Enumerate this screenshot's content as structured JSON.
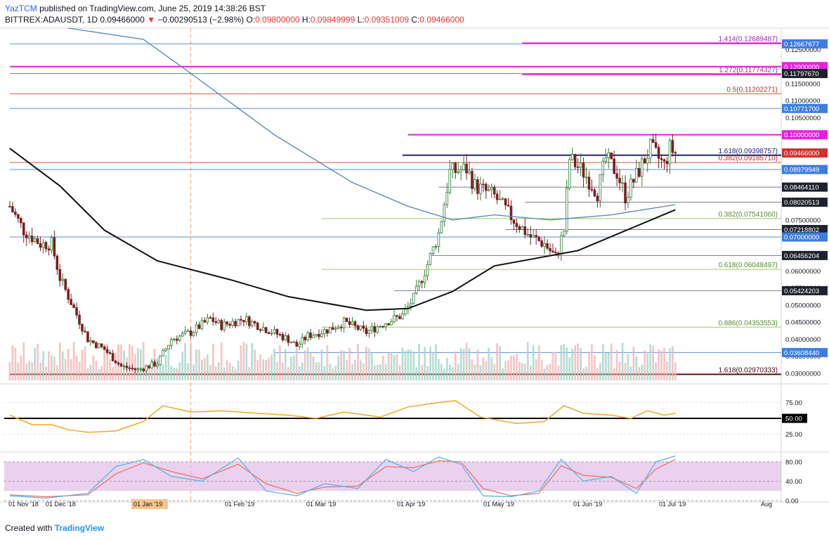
{
  "header": {
    "author": "YazTCM",
    "published": "published on TradingView.com, June 25, 2019 14:38:26 BST",
    "symbol": "BITTREX:ADAUSDT, 1D",
    "price": "0.09466000",
    "change_arrow": "▼",
    "change": "−0.00290513 (−2.98%)",
    "open_label": "O:",
    "open": "0.09800000",
    "high_label": "H:",
    "high": "0.09849999",
    "low_label": "L:",
    "low": "0.09351009",
    "close_label": "C:",
    "close": "0.09466000"
  },
  "footer": {
    "created_with": "Created with",
    "brand": "TradingView"
  },
  "colors": {
    "up": "#26a69a",
    "down": "#7a1f1f",
    "ma200": "#4a87c5",
    "ma100": "#111111",
    "magenta": "#e91ee0",
    "blue_line": "#5b8fdc",
    "red_line": "#e0583a",
    "green_line": "#9ccc65",
    "gray_line": "#787b86",
    "rsi": "#f5a623",
    "stoch_k": "#4fb3e8",
    "stoch_d": "#ef6c5a",
    "stoch_band": "#e1bee7"
  },
  "chart_data": {
    "type": "candlestick",
    "price_axis": {
      "ticks": [
        "0.12500000",
        "0.11500000",
        "0.11000000",
        "0.10500000",
        "0.09000000",
        "0.07500000",
        "0.06000000",
        "0.05500000",
        "0.05000000",
        "0.04500000",
        "0.04000000",
        "0.03500000",
        "0.03000000"
      ],
      "tick_values": [
        0.125,
        0.115,
        0.11,
        0.105,
        0.09,
        0.075,
        0.06,
        0.055,
        0.05,
        0.045,
        0.04,
        0.035,
        0.03
      ]
    },
    "time_axis": {
      "labels": [
        "01 Nov '18",
        "01 Dec '18",
        "01 Jan '19",
        "01 Feb '19",
        "01 Mar '19",
        "01 Apr '19",
        "01 May '19",
        "01 Jun '19",
        "01 Jul '19",
        "Aug"
      ],
      "highlighted": "01 Jan '19"
    },
    "levels": [
      {
        "label": "",
        "badge": "0.12667677",
        "value": 0.12667677,
        "kind": "blue_line",
        "from": "2018-10-28"
      },
      {
        "label": "1.414(0.12689487)",
        "badge": "",
        "value": 0.12689487,
        "kind": "magenta",
        "from": "2019-04-30"
      },
      {
        "label": "",
        "badge": "0.12000000",
        "value": 0.12,
        "kind": "magenta",
        "from": "2018-10-28"
      },
      {
        "label": "",
        "badge": "0.11797670",
        "value": 0.1179767,
        "kind": "gray_line",
        "from": "2018-10-28"
      },
      {
        "label": "1.272(0.11774327)",
        "badge": "",
        "value": 0.11774327,
        "kind": "magenta",
        "from": "2019-04-30"
      },
      {
        "label": "0.5(0.11202271)",
        "badge": "",
        "value": 0.11202271,
        "kind": "red_line",
        "from": "2018-10-28"
      },
      {
        "label": "",
        "badge": "0.10771700",
        "value": 0.107717,
        "kind": "blue_line",
        "from": "2018-10-28"
      },
      {
        "label": "",
        "badge": "0.10000000",
        "value": 0.1,
        "kind": "magenta",
        "from": "2019-03-20"
      },
      {
        "label": "1.618(0.09398757)",
        "badge": "",
        "value": 0.09398757,
        "kind": "navy",
        "from": "2019-03-18"
      },
      {
        "label": "",
        "badge": "0.09466000",
        "value": 0.09466,
        "kind": "price",
        "from": ""
      },
      {
        "label": "0.382(0.09185710)",
        "badge": "",
        "value": 0.0918571,
        "kind": "red_line",
        "from": "2018-10-28"
      },
      {
        "label": "",
        "badge": "0.08979949",
        "value": 0.08979949,
        "kind": "blue_line",
        "from": "2018-10-28"
      },
      {
        "label": "",
        "badge": "0.08464110",
        "value": 0.0846411,
        "kind": "gray_line",
        "from": "2019-03-31"
      },
      {
        "label": "",
        "badge": "0.08020513",
        "value": 0.08020513,
        "kind": "gray_line",
        "from": "2019-05-01"
      },
      {
        "label": "0.382(0.07541060)",
        "badge": "",
        "value": 0.0754106,
        "kind": "green_line",
        "from": "2019-02-17"
      },
      {
        "label": "",
        "badge": "0.07218802",
        "value": 0.07218802,
        "kind": "gray_line",
        "from": "2019-04-24"
      },
      {
        "label": "",
        "badge": "0.07000000",
        "value": 0.07,
        "kind": "blue_line",
        "from": "2018-10-28"
      },
      {
        "label": "",
        "badge": "0.06456204",
        "value": 0.06456204,
        "kind": "gray_line",
        "from": "2019-03-28"
      },
      {
        "label": "0.618(0.06048497)",
        "badge": "",
        "value": 0.06048497,
        "kind": "green_line",
        "from": "2019-02-17"
      },
      {
        "label": "",
        "badge": "0.05424203",
        "value": 0.05424203,
        "kind": "gray_line",
        "from": "2019-03-15"
      },
      {
        "label": "0.886(0.04353553)",
        "badge": "",
        "value": 0.04353553,
        "kind": "green_line",
        "from": "2019-02-17"
      },
      {
        "label": "",
        "badge": "0.03608440",
        "value": 0.0360844,
        "kind": "blue_line",
        "from": "2019-01-31"
      },
      {
        "label": "1.618(0.02970333)",
        "badge": "",
        "value": 0.02970333,
        "kind": "darkred",
        "from": "2018-10-28"
      }
    ],
    "anchors": [
      [
        "2018-10-28",
        0.079
      ],
      [
        "2018-11-02",
        0.072
      ],
      [
        "2018-11-08",
        0.068
      ],
      [
        "2018-11-12",
        0.068
      ],
      [
        "2018-11-15",
        0.058
      ],
      [
        "2018-11-20",
        0.049
      ],
      [
        "2018-11-25",
        0.04
      ],
      [
        "2018-12-01",
        0.037
      ],
      [
        "2018-12-07",
        0.032
      ],
      [
        "2018-12-13",
        0.031
      ],
      [
        "2018-12-20",
        0.033
      ],
      [
        "2018-12-25",
        0.04
      ],
      [
        "2019-01-01",
        0.042
      ],
      [
        "2019-01-08",
        0.046
      ],
      [
        "2019-01-12",
        0.044
      ],
      [
        "2019-01-20",
        0.046
      ],
      [
        "2019-01-28",
        0.043
      ],
      [
        "2019-02-05",
        0.04
      ],
      [
        "2019-02-08",
        0.038
      ],
      [
        "2019-02-12",
        0.041
      ],
      [
        "2019-02-20",
        0.043
      ],
      [
        "2019-02-25",
        0.045
      ],
      [
        "2019-03-05",
        0.042
      ],
      [
        "2019-03-12",
        0.045
      ],
      [
        "2019-03-18",
        0.047
      ],
      [
        "2019-03-22",
        0.052
      ],
      [
        "2019-03-27",
        0.062
      ],
      [
        "2019-03-31",
        0.071
      ],
      [
        "2019-04-04",
        0.089
      ],
      [
        "2019-04-10",
        0.09
      ],
      [
        "2019-04-13",
        0.085
      ],
      [
        "2019-04-20",
        0.082
      ],
      [
        "2019-04-27",
        0.075
      ],
      [
        "2019-05-03",
        0.07
      ],
      [
        "2019-05-08",
        0.068
      ],
      [
        "2019-05-12",
        0.064
      ],
      [
        "2019-05-15",
        0.072
      ],
      [
        "2019-05-17",
        0.093
      ],
      [
        "2019-05-22",
        0.089
      ],
      [
        "2019-05-27",
        0.083
      ],
      [
        "2019-05-30",
        0.093
      ],
      [
        "2019-06-03",
        0.089
      ],
      [
        "2019-06-06",
        0.082
      ],
      [
        "2019-06-10",
        0.088
      ],
      [
        "2019-06-15",
        0.096
      ],
      [
        "2019-06-20",
        0.091
      ],
      [
        "2019-06-22",
        0.096
      ],
      [
        "2019-06-24",
        0.0947
      ]
    ],
    "ma200_curve": [
      [
        "2018-11-18",
        0.141
      ],
      [
        "2018-12-15",
        0.128
      ],
      [
        "2019-01-01",
        0.118
      ],
      [
        "2019-01-31",
        0.1
      ],
      [
        "2019-02-28",
        0.086
      ],
      [
        "2019-03-20",
        0.079
      ],
      [
        "2019-04-05",
        0.075
      ],
      [
        "2019-04-20",
        0.0765
      ],
      [
        "2019-05-10",
        0.075
      ],
      [
        "2019-06-01",
        0.0765
      ],
      [
        "2019-06-24",
        0.0795
      ]
    ],
    "ma100_curve": [
      [
        "2018-10-28",
        0.096
      ],
      [
        "2018-11-15",
        0.085
      ],
      [
        "2018-12-01",
        0.072
      ],
      [
        "2018-12-20",
        0.063
      ],
      [
        "2019-01-15",
        0.0575
      ],
      [
        "2019-02-05",
        0.0525
      ],
      [
        "2019-03-05",
        0.0485
      ],
      [
        "2019-03-20",
        0.049
      ],
      [
        "2019-04-05",
        0.054
      ],
      [
        "2019-04-20",
        0.0615
      ],
      [
        "2019-05-10",
        0.0645
      ],
      [
        "2019-05-20",
        0.066
      ],
      [
        "2019-06-05",
        0.0715
      ],
      [
        "2019-06-24",
        0.078
      ]
    ],
    "rsi": {
      "ticks": [
        "75.00",
        "50.00",
        "25.00"
      ],
      "tick_values": [
        75,
        50,
        25
      ],
      "level_label": "50.00",
      "level": 50,
      "points": [
        [
          "2018-10-28",
          55
        ],
        [
          "2018-11-05",
          40
        ],
        [
          "2018-11-12",
          40
        ],
        [
          "2018-11-18",
          32
        ],
        [
          "2018-11-25",
          28
        ],
        [
          "2018-12-05",
          30
        ],
        [
          "2018-12-15",
          45
        ],
        [
          "2018-12-22",
          70
        ],
        [
          "2019-01-01",
          60
        ],
        [
          "2019-01-12",
          62
        ],
        [
          "2019-01-25",
          58
        ],
        [
          "2019-02-05",
          55
        ],
        [
          "2019-02-15",
          50
        ],
        [
          "2019-02-25",
          60
        ],
        [
          "2019-03-10",
          52
        ],
        [
          "2019-03-20",
          68
        ],
        [
          "2019-03-31",
          75
        ],
        [
          "2019-04-06",
          78
        ],
        [
          "2019-04-15",
          52
        ],
        [
          "2019-04-28",
          42
        ],
        [
          "2019-05-08",
          45
        ],
        [
          "2019-05-15",
          70
        ],
        [
          "2019-05-22",
          58
        ],
        [
          "2019-06-01",
          55
        ],
        [
          "2019-06-08",
          50
        ],
        [
          "2019-06-14",
          62
        ],
        [
          "2019-06-20",
          55
        ],
        [
          "2019-06-24",
          58
        ]
      ]
    },
    "stoch_rsi": {
      "ticks": [
        "80.00",
        "40.00",
        "0.00"
      ],
      "tick_values": [
        80,
        40,
        0
      ],
      "band": [
        20,
        80
      ],
      "k": [
        [
          "2018-10-28",
          10
        ],
        [
          "2018-11-10",
          5
        ],
        [
          "2018-11-25",
          15
        ],
        [
          "2018-12-05",
          70
        ],
        [
          "2018-12-15",
          85
        ],
        [
          "2018-12-25",
          50
        ],
        [
          "2019-01-05",
          40
        ],
        [
          "2019-01-18",
          88
        ],
        [
          "2019-01-28",
          20
        ],
        [
          "2019-02-08",
          10
        ],
        [
          "2019-02-18",
          35
        ],
        [
          "2019-03-02",
          25
        ],
        [
          "2019-03-12",
          85
        ],
        [
          "2019-03-22",
          60
        ],
        [
          "2019-03-31",
          90
        ],
        [
          "2019-04-08",
          75
        ],
        [
          "2019-04-16",
          10
        ],
        [
          "2019-04-26",
          8
        ],
        [
          "2019-05-06",
          20
        ],
        [
          "2019-05-14",
          85
        ],
        [
          "2019-05-22",
          40
        ],
        [
          "2019-06-01",
          50
        ],
        [
          "2019-06-10",
          15
        ],
        [
          "2019-06-17",
          80
        ],
        [
          "2019-06-24",
          92
        ]
      ],
      "d": [
        [
          "2018-10-28",
          12
        ],
        [
          "2018-11-10",
          8
        ],
        [
          "2018-11-25",
          12
        ],
        [
          "2018-12-05",
          55
        ],
        [
          "2018-12-15",
          78
        ],
        [
          "2018-12-25",
          60
        ],
        [
          "2019-01-05",
          45
        ],
        [
          "2019-01-18",
          75
        ],
        [
          "2019-01-28",
          35
        ],
        [
          "2019-02-08",
          15
        ],
        [
          "2019-02-18",
          28
        ],
        [
          "2019-03-02",
          30
        ],
        [
          "2019-03-12",
          70
        ],
        [
          "2019-03-22",
          68
        ],
        [
          "2019-03-31",
          82
        ],
        [
          "2019-04-08",
          80
        ],
        [
          "2019-04-16",
          25
        ],
        [
          "2019-04-26",
          10
        ],
        [
          "2019-05-06",
          15
        ],
        [
          "2019-05-14",
          72
        ],
        [
          "2019-05-22",
          52
        ],
        [
          "2019-06-01",
          48
        ],
        [
          "2019-06-10",
          25
        ],
        [
          "2019-06-17",
          65
        ],
        [
          "2019-06-24",
          85
        ]
      ]
    }
  }
}
